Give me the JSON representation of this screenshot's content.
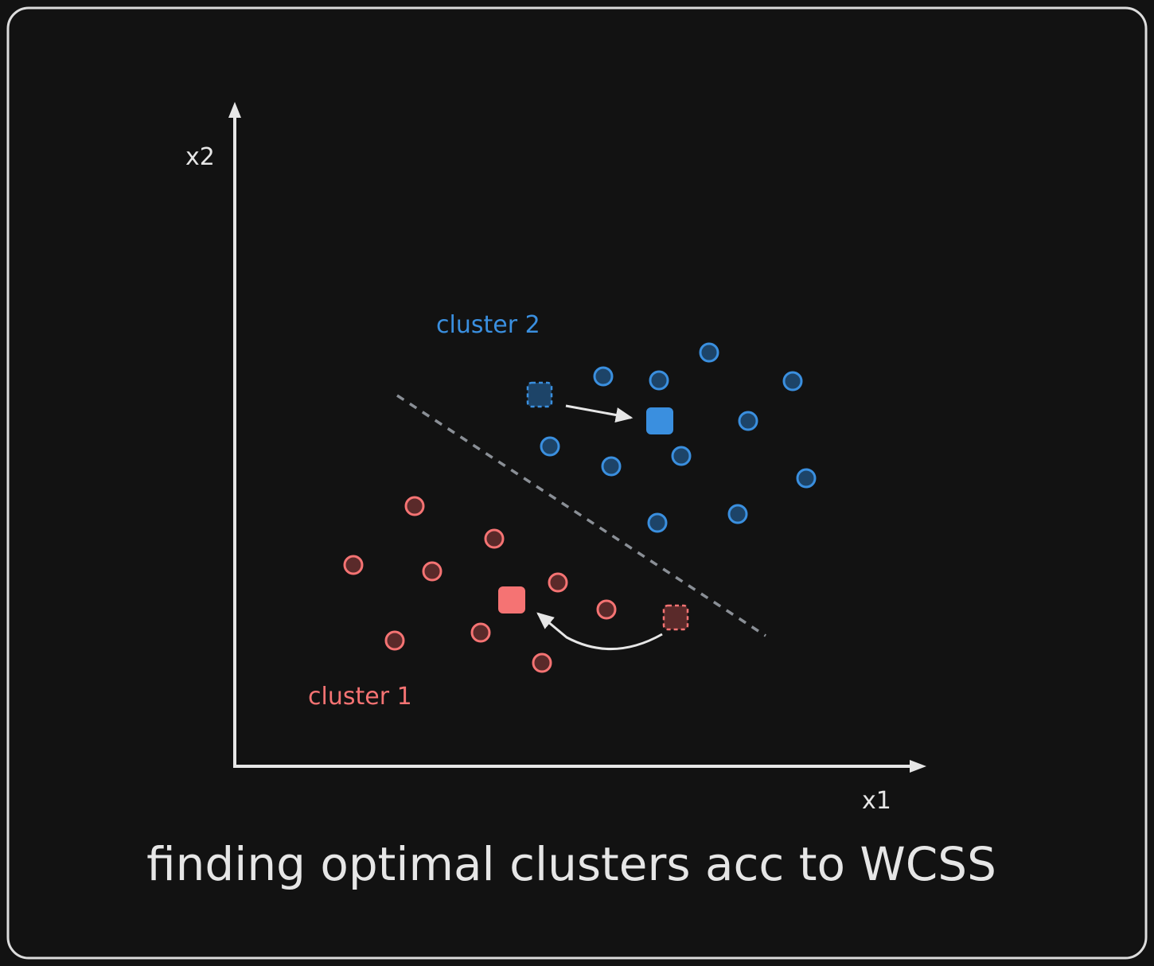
{
  "diagram": {
    "title": "finding optimal clusters acc to WCSS",
    "axes": {
      "x_label": "x1",
      "y_label": "x2"
    },
    "clusters": [
      {
        "label": "cluster 2",
        "color": "#3a8fdf",
        "fill": "#1d4468",
        "points": [
          [
            891,
            443
          ],
          [
            758,
            473
          ],
          [
            828,
            478
          ],
          [
            996,
            479
          ],
          [
            940,
            529
          ],
          [
            691,
            561
          ],
          [
            856,
            573
          ],
          [
            768,
            586
          ],
          [
            1013,
            601
          ],
          [
            927,
            646
          ],
          [
            826,
            657
          ]
        ],
        "old_centroid": [
          678,
          496
        ],
        "new_centroid": [
          829,
          529
        ]
      },
      {
        "label": "cluster 1",
        "color": "#f57373",
        "fill": "#5a2a2a",
        "points": [
          [
            521,
            636
          ],
          [
            621,
            677
          ],
          [
            444,
            710
          ],
          [
            543,
            718
          ],
          [
            701,
            732
          ],
          [
            762,
            766
          ],
          [
            604,
            795
          ],
          [
            496,
            805
          ],
          [
            681,
            833
          ]
        ],
        "old_centroid": [
          849,
          776
        ],
        "new_centroid": [
          643,
          754
        ]
      }
    ],
    "boundary_color": "#8a8f96",
    "ink_color": "#e6e6e6"
  }
}
